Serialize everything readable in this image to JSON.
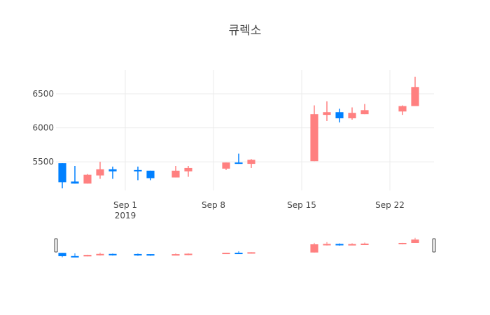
{
  "chart_data": {
    "type": "candlestick",
    "title": "큐렉소",
    "xlabel": "",
    "ylabel": "",
    "ylim": [
      5080,
      6850
    ],
    "xlim": [
      "2019-08-26T12:00",
      "2019-09-25T12:00"
    ],
    "y_ticks": [
      5500,
      6000,
      6500
    ],
    "x_ticks": [
      {
        "date": "2019-09-01",
        "label": "Sep 1",
        "sublabel": "2019"
      },
      {
        "date": "2019-09-08",
        "label": "Sep 8",
        "sublabel": ""
      },
      {
        "date": "2019-09-15",
        "label": "Sep 15",
        "sublabel": ""
      },
      {
        "date": "2019-09-22",
        "label": "Sep 22",
        "sublabel": ""
      }
    ],
    "increasing_color": "#ff8080",
    "decreasing_color": "#0080ff",
    "grid": true,
    "range_slider": true,
    "candles": [
      {
        "date": "2019-08-27",
        "open": 5480,
        "high": 5480,
        "low": 5110,
        "close": 5200
      },
      {
        "date": "2019-08-28",
        "open": 5210,
        "high": 5440,
        "low": 5180,
        "close": 5180
      },
      {
        "date": "2019-08-29",
        "open": 5180,
        "high": 5320,
        "low": 5180,
        "close": 5310
      },
      {
        "date": "2019-08-30",
        "open": 5300,
        "high": 5500,
        "low": 5250,
        "close": 5390
      },
      {
        "date": "2019-08-31",
        "open": 5390,
        "high": 5430,
        "low": 5250,
        "close": 5360
      },
      {
        "date": "2019-09-02",
        "open": 5380,
        "high": 5430,
        "low": 5230,
        "close": 5370
      },
      {
        "date": "2019-09-03",
        "open": 5370,
        "high": 5370,
        "low": 5230,
        "close": 5260
      },
      {
        "date": "2019-09-05",
        "open": 5270,
        "high": 5440,
        "low": 5270,
        "close": 5370
      },
      {
        "date": "2019-09-06",
        "open": 5360,
        "high": 5440,
        "low": 5280,
        "close": 5410
      },
      {
        "date": "2019-09-09",
        "open": 5400,
        "high": 5490,
        "low": 5380,
        "close": 5490
      },
      {
        "date": "2019-09-10",
        "open": 5490,
        "high": 5620,
        "low": 5470,
        "close": 5470
      },
      {
        "date": "2019-09-11",
        "open": 5470,
        "high": 5540,
        "low": 5410,
        "close": 5530
      },
      {
        "date": "2019-09-16",
        "open": 5510,
        "high": 6330,
        "low": 5510,
        "close": 6200
      },
      {
        "date": "2019-09-17",
        "open": 6190,
        "high": 6390,
        "low": 6100,
        "close": 6230
      },
      {
        "date": "2019-09-18",
        "open": 6230,
        "high": 6280,
        "low": 6080,
        "close": 6140
      },
      {
        "date": "2019-09-19",
        "open": 6140,
        "high": 6300,
        "low": 6120,
        "close": 6220
      },
      {
        "date": "2019-09-20",
        "open": 6200,
        "high": 6350,
        "low": 6200,
        "close": 6260
      },
      {
        "date": "2019-09-23",
        "open": 6240,
        "high": 6330,
        "low": 6190,
        "close": 6320
      },
      {
        "date": "2019-09-24",
        "open": 6320,
        "high": 6750,
        "low": 6320,
        "close": 6600
      }
    ]
  }
}
